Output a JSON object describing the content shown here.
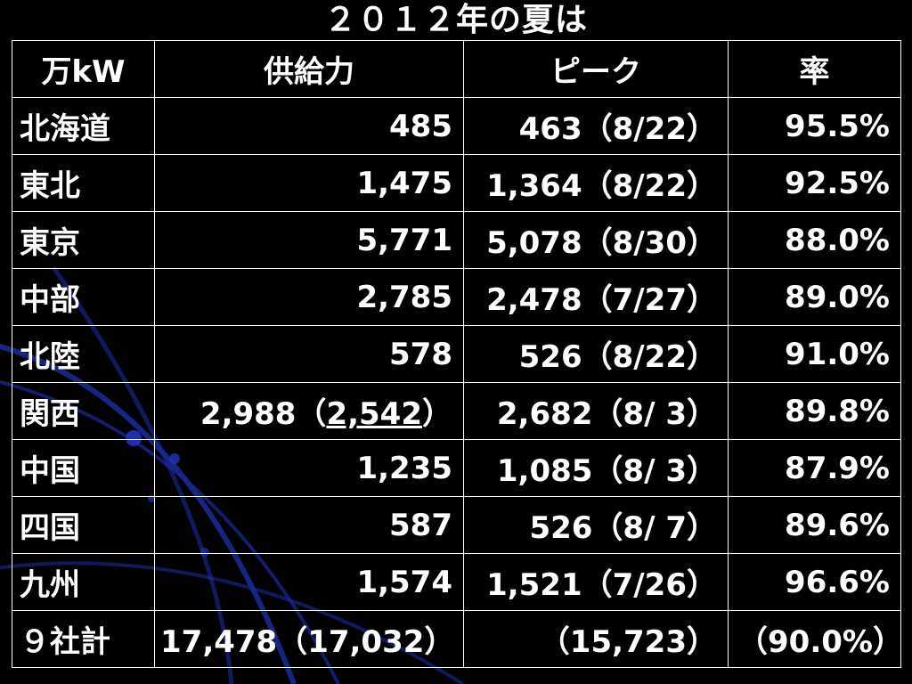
{
  "title": "２０１２年の夏は",
  "colors": {
    "background": "#000000",
    "text": "#ffffff",
    "decor": "#1a2a9a"
  },
  "table": {
    "headers": [
      "万kW",
      "供給力",
      "ピーク",
      "率"
    ],
    "rows": [
      {
        "region": "北海道",
        "supply": "485",
        "peak": "463（8/22）",
        "rate": "95.5%"
      },
      {
        "region": "東北",
        "supply": "1,475",
        "peak": "1,364（8/22）",
        "rate": "92.5%"
      },
      {
        "region": "東京",
        "supply": "5,771",
        "peak": "5,078（8/30）",
        "rate": "88.0%"
      },
      {
        "region": "中部",
        "supply": "2,785",
        "peak": "2,478（7/27）",
        "rate": "89.0%"
      },
      {
        "region": "北陸",
        "supply": "578",
        "peak": "526（8/22）",
        "rate": "91.0%"
      },
      {
        "region": "関西",
        "supply_main": "2,988（",
        "supply_underlined": "2,542",
        "supply_close": "）",
        "peak": "2,682（8/  3）",
        "rate": "89.8%"
      },
      {
        "region": "中国",
        "supply": "1,235",
        "peak": "1,085（8/  3）",
        "rate": "87.9%"
      },
      {
        "region": "四国",
        "supply": "587",
        "peak": "526（8/  7）",
        "rate": "89.6%"
      },
      {
        "region": "九州",
        "supply": "1,574",
        "peak": "1,521（7/26）",
        "rate": "96.6%"
      }
    ],
    "total": {
      "region": "９社計",
      "supply": "17,478（17,032）",
      "peak": "（15,723）",
      "rate": "（90.0%）"
    }
  }
}
